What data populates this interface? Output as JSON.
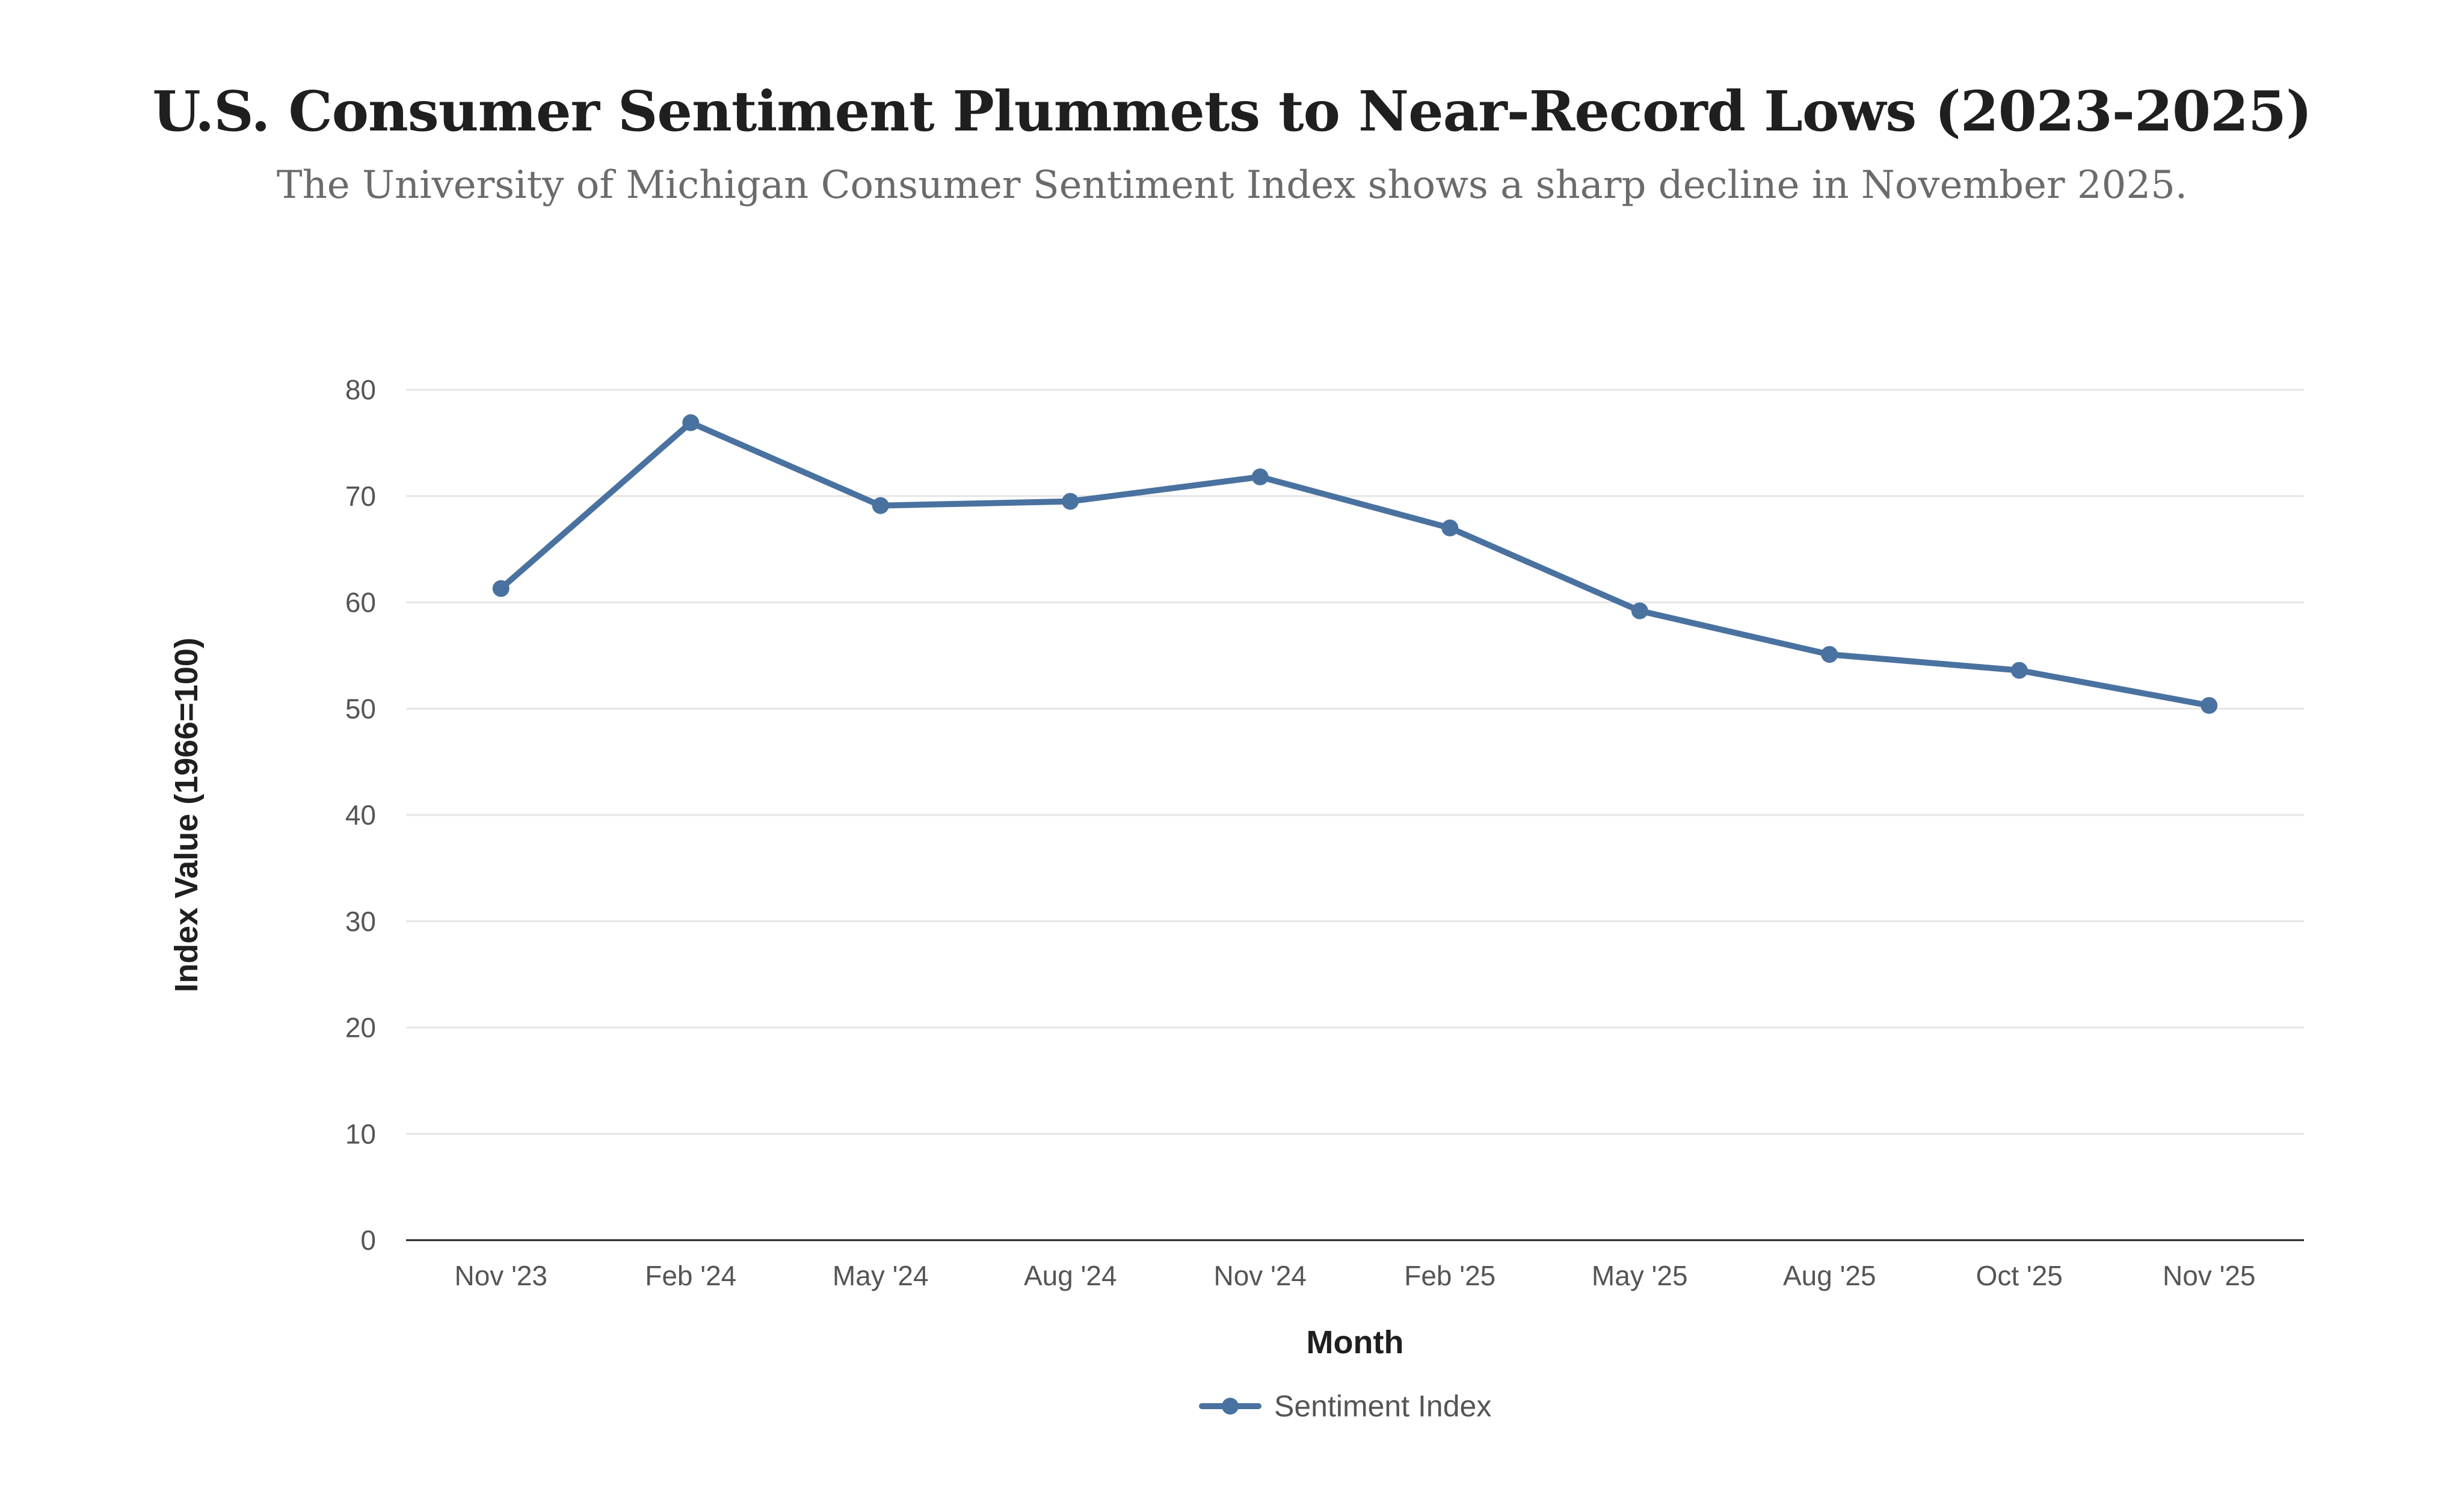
{
  "header": {
    "title": "U.S. Consumer Sentiment Plummets to Near-Record Lows (2023-2025)",
    "subtitle": "The University of Michigan Consumer Sentiment Index shows a sharp decline in November 2025."
  },
  "colors": {
    "series": "#4a72a0",
    "grid": "#e6e6e6",
    "axis": "#1f1f1f"
  },
  "chart_data": {
    "type": "line",
    "title": "U.S. Consumer Sentiment Plummets to Near-Record Lows (2023-2025)",
    "subtitle": "The University of Michigan Consumer Sentiment Index shows a sharp decline in November 2025.",
    "xlabel": "Month",
    "ylabel": "Index Value (1966=100)",
    "categories": [
      "Nov '23",
      "Feb '24",
      "May '24",
      "Aug '24",
      "Nov '24",
      "Feb '25",
      "May '25",
      "Aug '25",
      "Oct '25",
      "Nov '25"
    ],
    "series": [
      {
        "name": "Sentiment Index",
        "values": [
          61.3,
          76.9,
          69.1,
          69.5,
          71.8,
          67.0,
          59.2,
          55.1,
          53.6,
          50.3
        ]
      }
    ],
    "ylim": [
      0,
      80
    ],
    "yticks": [
      0,
      10,
      20,
      30,
      40,
      50,
      60,
      70,
      80
    ],
    "grid": true,
    "legend": "bottom-center",
    "markers": true
  }
}
